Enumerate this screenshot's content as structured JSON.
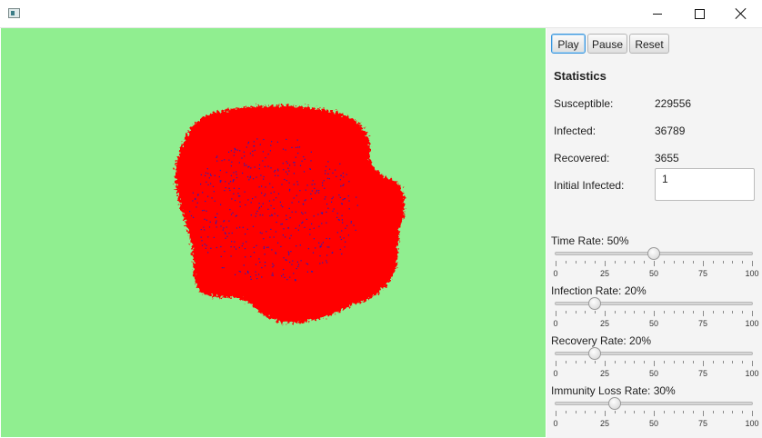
{
  "window": {
    "minimize_icon": "minimize-icon",
    "maximize_icon": "maximize-icon",
    "close_icon": "close-icon"
  },
  "simulation": {
    "background_color": "#90ee90",
    "infected_color": "#ff0000",
    "recovered_color": "#2020c0"
  },
  "controls": {
    "play_label": "Play",
    "pause_label": "Pause",
    "reset_label": "Reset"
  },
  "statistics": {
    "title": "Statistics",
    "susceptible_label": "Susceptible:",
    "susceptible_value": "229556",
    "infected_label": "Infected:",
    "infected_value": "36789",
    "recovered_label": "Recovered:",
    "recovered_value": "3655",
    "initial_infected_label": "Initial Infected:",
    "initial_infected_value": "1"
  },
  "sliders": [
    {
      "label": "Time Rate: 50%",
      "value": 50
    },
    {
      "label": "Infection Rate: 20%",
      "value": 20
    },
    {
      "label": "Recovery Rate: 20%",
      "value": 20
    },
    {
      "label": "Immunity Loss Rate: 30%",
      "value": 30
    }
  ],
  "slider_ticks": [
    "0",
    "25",
    "50",
    "75",
    "100"
  ]
}
